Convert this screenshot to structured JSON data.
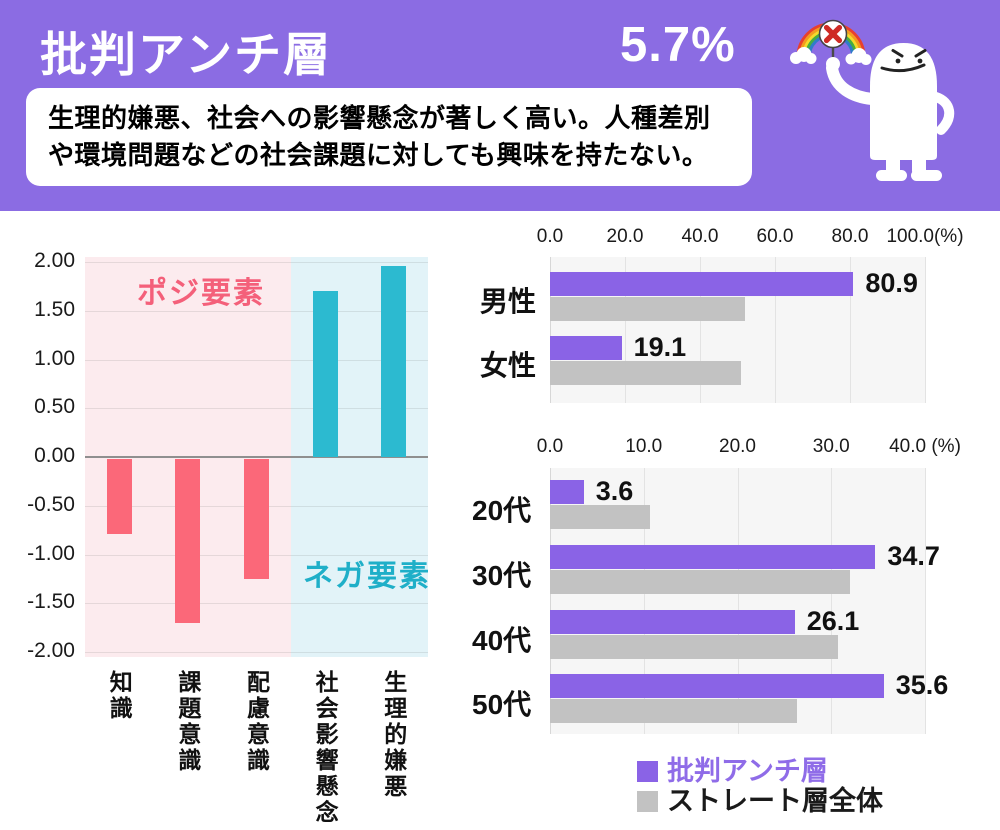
{
  "header": {
    "title": "批判アンチ層",
    "percent": "5.7%",
    "description_line1": "生理的嫌悪、社会への影響懸念が著しく高い。人種差別",
    "description_line2": "や環境問題などの社会課題に対しても興味を持たない。",
    "bg_color": "#8B6CE3"
  },
  "mascot": {
    "icon": "angry-blob-character-icon",
    "held_sign_icon": "x-mark-sign-icon",
    "rejected_symbol_icon": "rainbow-icon"
  },
  "colors": {
    "accent_purple": "#8A63E6",
    "compare_gray": "#C2C2C2",
    "plot_bg": "#F6F6F6",
    "grid_line": "#E3E3E3",
    "axis_line": "#D7D7D7",
    "zero_line": "#8F8F8F",
    "text_dark": "#111111"
  },
  "chart_data": [
    {
      "type": "bar",
      "title": "",
      "xlabel": "",
      "ylabel": "",
      "categories": [
        "知識",
        "課題意識",
        "配慮意識",
        "社会影響懸念",
        "生理的嫌悪"
      ],
      "values": [
        -0.77,
        -1.68,
        -1.23,
        1.7,
        1.96
      ],
      "ylim": [
        -2.0,
        2.0
      ],
      "ytick_labels": [
        "2.00",
        "1.50",
        "1.00",
        "0.50",
        "0.00",
        "-0.50",
        "-1.00",
        "-1.50",
        "-2.00"
      ],
      "grid": true,
      "bar_colors": {
        "positive": "#2CBAD0",
        "negative": "#FB6879"
      },
      "zones": [
        {
          "label": "ポジ要素",
          "span": [
            0,
            3
          ],
          "bg_color": "#FCEBEE",
          "text_color": "#F4607A"
        },
        {
          "label": "ネガ要素",
          "span": [
            3,
            5
          ],
          "bg_color": "#E2F3F8",
          "text_color": "#1FAFC8"
        }
      ]
    },
    {
      "type": "bar_horizontal",
      "title": "",
      "categories": [
        "男性",
        "女性"
      ],
      "series": [
        {
          "name": "批判アンチ層",
          "color": "#8A63E6",
          "values": [
            80.9,
            19.1
          ],
          "data_labels": [
            "80.9",
            "19.1"
          ]
        },
        {
          "name": "ストレート層全体",
          "color": "#C2C2C2",
          "values": [
            52.0,
            50.8
          ],
          "data_labels": []
        }
      ],
      "xlim": [
        0,
        100
      ],
      "xticks": [
        0,
        20,
        40,
        60,
        80,
        100
      ],
      "xtick_labels": [
        "0.0",
        "20.0",
        "40.0",
        "60.0",
        "80.0",
        "100.0(%)"
      ],
      "grid": true,
      "legend_position": "none"
    },
    {
      "type": "bar_horizontal",
      "title": "",
      "categories": [
        "20代",
        "30代",
        "40代",
        "50代"
      ],
      "series": [
        {
          "name": "批判アンチ層",
          "color": "#8A63E6",
          "values": [
            3.6,
            34.7,
            26.1,
            35.6
          ],
          "data_labels": [
            "3.6",
            "34.7",
            "26.1",
            "35.6"
          ]
        },
        {
          "name": "ストレート層全体",
          "color": "#C2C2C2",
          "values": [
            10.7,
            32.0,
            30.7,
            26.3
          ],
          "data_labels": []
        }
      ],
      "xlim": [
        0,
        40
      ],
      "xticks": [
        0,
        10,
        20,
        30,
        40
      ],
      "xtick_labels": [
        "0.0",
        "10.0",
        "20.0",
        "30.0",
        "40.0 (%)"
      ],
      "grid": true,
      "legend_position": "bottom"
    }
  ],
  "legend": {
    "items": [
      {
        "label": "批判アンチ層",
        "color": "#8A63E6",
        "text_color": "#8F6CE8"
      },
      {
        "label": "ストレート層全体",
        "color": "#C2C2C2",
        "text_color": "#1a1a1a"
      }
    ]
  }
}
